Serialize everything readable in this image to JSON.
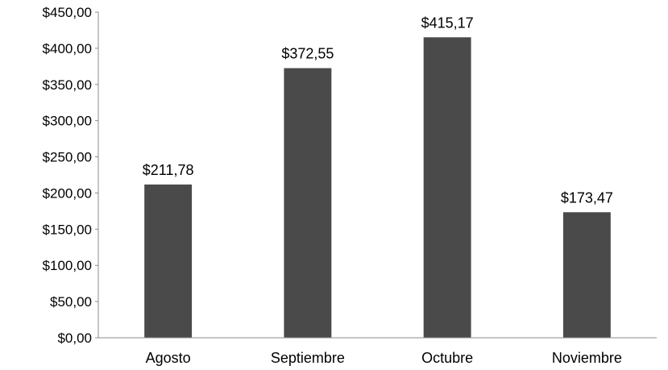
{
  "chart_data": {
    "type": "bar",
    "title": "",
    "xlabel": "",
    "ylabel": "",
    "categories": [
      "Agosto",
      "Septiembre",
      "Octubre",
      "Noviembre"
    ],
    "values": [
      211.78,
      372.55,
      415.17,
      173.47
    ],
    "value_labels": [
      "$211,78",
      "$372,55",
      "$415,17",
      "$173,47"
    ],
    "ylim": [
      0,
      450
    ],
    "y_ticks": [
      0,
      50,
      100,
      150,
      200,
      250,
      300,
      350,
      400,
      450
    ],
    "y_tick_labels": [
      "$0,00",
      "$50,00",
      "$100,00",
      "$150,00",
      "$200,00",
      "$250,00",
      "$300,00",
      "$350,00",
      "$400,00",
      "$450,00"
    ],
    "grid": false,
    "legend": "none",
    "bar_color": "#4a4a4a",
    "axis_color": "#8c8c8c"
  }
}
